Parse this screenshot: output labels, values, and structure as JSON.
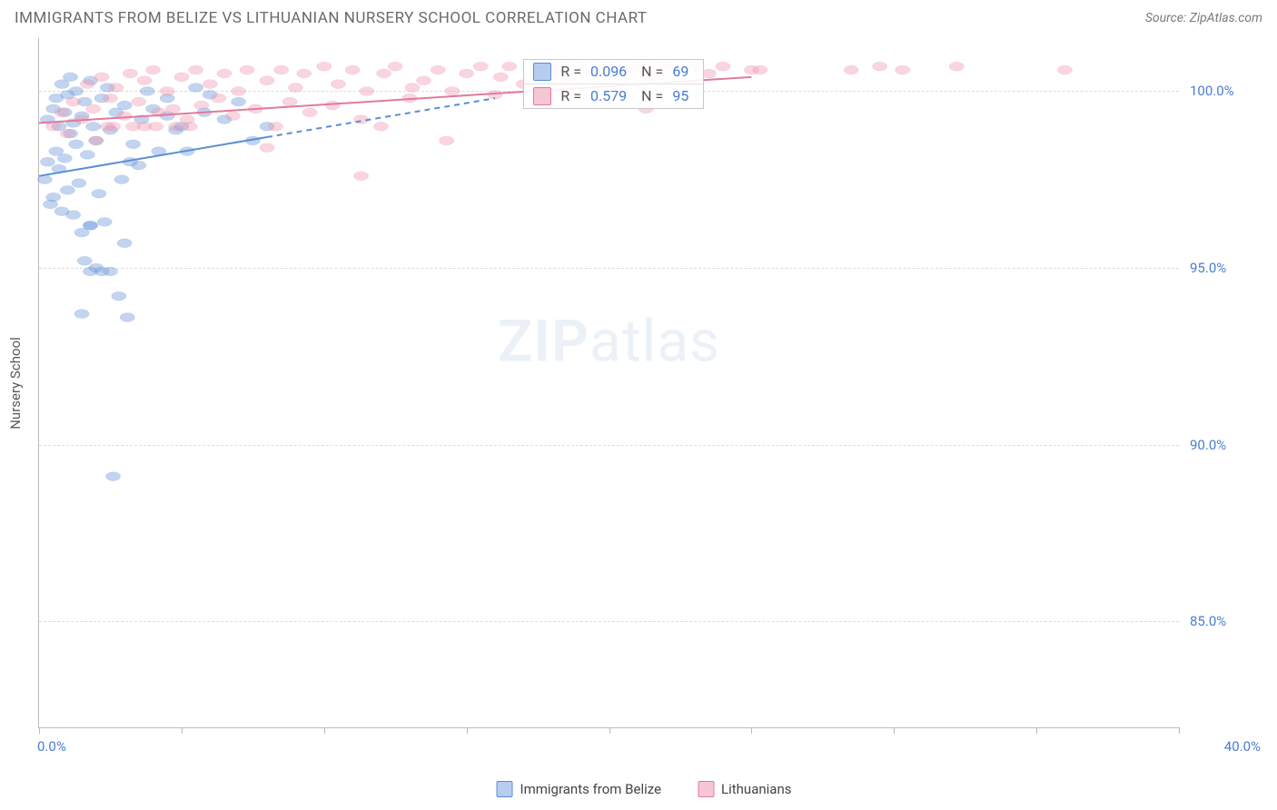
{
  "header": {
    "title": "IMMIGRANTS FROM BELIZE VS LITHUANIAN NURSERY SCHOOL CORRELATION CHART",
    "source": "Source: ZipAtlas.com"
  },
  "watermark": {
    "bold": "ZIP",
    "light": "atlas"
  },
  "chart": {
    "type": "scatter",
    "ylabel": "Nursery School",
    "xlim": [
      0,
      40
    ],
    "ylim": [
      82,
      101.5
    ],
    "x_ticks": [
      0,
      5,
      10,
      15,
      20,
      25,
      30,
      35,
      40
    ],
    "x_min_label": "0.0%",
    "x_max_label": "40.0%",
    "y_ticks": [
      {
        "v": 100,
        "label": "100.0%"
      },
      {
        "v": 95,
        "label": "95.0%"
      },
      {
        "v": 90,
        "label": "90.0%"
      },
      {
        "v": 85,
        "label": "85.0%"
      }
    ],
    "background_color": "#ffffff",
    "grid_color": "#dcdcdc",
    "marker_radius": 7,
    "marker_stroke_width": 1,
    "trend_line_width": 2,
    "dash_pattern": "6,5",
    "series": [
      {
        "key": "belize",
        "name": "Immigrants from Belize",
        "color_fill": "rgba(120,160,220,0.45)",
        "color_stroke": "#5a8fd4",
        "swatch_fill": "#b7cdf0",
        "swatch_border": "#5a8fd4",
        "R": "0.096",
        "N": "69",
        "trend_solid": {
          "x1": 0,
          "y1": 97.6,
          "x2": 8,
          "y2": 98.7
        },
        "trend_dash": {
          "x1": 8,
          "y1": 98.7,
          "x2": 16,
          "y2": 99.8
        },
        "points": [
          [
            0.2,
            97.5
          ],
          [
            0.3,
            98.0
          ],
          [
            0.3,
            99.2
          ],
          [
            0.4,
            96.8
          ],
          [
            0.5,
            99.5
          ],
          [
            0.5,
            97.0
          ],
          [
            0.6,
            99.8
          ],
          [
            0.6,
            98.3
          ],
          [
            0.7,
            99.0
          ],
          [
            0.7,
            97.8
          ],
          [
            0.8,
            100.2
          ],
          [
            0.8,
            96.6
          ],
          [
            0.9,
            99.4
          ],
          [
            0.9,
            98.1
          ],
          [
            1.0,
            99.9
          ],
          [
            1.0,
            97.2
          ],
          [
            1.1,
            98.8
          ],
          [
            1.1,
            100.4
          ],
          [
            1.2,
            99.1
          ],
          [
            1.2,
            96.5
          ],
          [
            1.3,
            98.5
          ],
          [
            1.3,
            100.0
          ],
          [
            1.4,
            97.4
          ],
          [
            1.5,
            99.3
          ],
          [
            1.5,
            96.0
          ],
          [
            1.6,
            95.2
          ],
          [
            1.6,
            99.7
          ],
          [
            1.7,
            98.2
          ],
          [
            1.8,
            100.3
          ],
          [
            1.8,
            96.2
          ],
          [
            1.9,
            99.0
          ],
          [
            2.0,
            95.0
          ],
          [
            2.0,
            98.6
          ],
          [
            2.1,
            97.1
          ],
          [
            2.2,
            99.8
          ],
          [
            2.3,
            96.3
          ],
          [
            2.4,
            100.1
          ],
          [
            2.5,
            94.9
          ],
          [
            2.5,
            98.9
          ],
          [
            2.7,
            99.4
          ],
          [
            2.8,
            94.2
          ],
          [
            2.9,
            97.5
          ],
          [
            3.0,
            95.7
          ],
          [
            3.0,
            99.6
          ],
          [
            3.1,
            93.6
          ],
          [
            3.2,
            98.0
          ],
          [
            3.3,
            98.5
          ],
          [
            3.5,
            97.9
          ],
          [
            3.6,
            99.2
          ],
          [
            3.8,
            100.0
          ],
          [
            4.0,
            99.5
          ],
          [
            4.2,
            98.3
          ],
          [
            4.5,
            99.8
          ],
          [
            4.5,
            99.3
          ],
          [
            4.8,
            98.9
          ],
          [
            5.0,
            99.0
          ],
          [
            5.2,
            98.3
          ],
          [
            5.5,
            100.1
          ],
          [
            5.8,
            99.4
          ],
          [
            6.0,
            99.9
          ],
          [
            6.5,
            99.2
          ],
          [
            7.0,
            99.7
          ],
          [
            7.5,
            98.6
          ],
          [
            8.0,
            99.0
          ],
          [
            2.6,
            89.1
          ],
          [
            1.8,
            94.9
          ],
          [
            2.2,
            94.9
          ],
          [
            1.5,
            93.7
          ],
          [
            1.8,
            96.2
          ]
        ]
      },
      {
        "key": "lithuanians",
        "name": "Lithuanians",
        "color_fill": "rgba(240,150,175,0.40)",
        "color_stroke": "#e27a9a",
        "swatch_fill": "#f5c6d4",
        "swatch_border": "#e27a9a",
        "R": "0.579",
        "N": "95",
        "trend_solid": {
          "x1": 0,
          "y1": 99.1,
          "x2": 25,
          "y2": 100.4
        },
        "trend_dash": null,
        "points": [
          [
            0.5,
            99.0
          ],
          [
            0.8,
            99.4
          ],
          [
            1.0,
            98.8
          ],
          [
            1.2,
            99.7
          ],
          [
            1.5,
            99.2
          ],
          [
            1.7,
            100.2
          ],
          [
            1.9,
            99.5
          ],
          [
            2.0,
            98.6
          ],
          [
            2.2,
            100.4
          ],
          [
            2.4,
            99.0
          ],
          [
            2.5,
            99.8
          ],
          [
            2.6,
            99.0
          ],
          [
            2.7,
            100.1
          ],
          [
            3.0,
            99.3
          ],
          [
            3.2,
            100.5
          ],
          [
            3.3,
            99.0
          ],
          [
            3.5,
            99.7
          ],
          [
            3.7,
            100.3
          ],
          [
            3.7,
            99.0
          ],
          [
            4.0,
            100.6
          ],
          [
            4.1,
            99.0
          ],
          [
            4.2,
            99.4
          ],
          [
            4.5,
            100.0
          ],
          [
            4.7,
            99.5
          ],
          [
            4.8,
            99.0
          ],
          [
            5.0,
            100.4
          ],
          [
            5.2,
            99.2
          ],
          [
            5.3,
            99.0
          ],
          [
            5.5,
            100.6
          ],
          [
            5.7,
            99.6
          ],
          [
            6.0,
            100.2
          ],
          [
            6.3,
            99.8
          ],
          [
            6.5,
            100.5
          ],
          [
            6.8,
            99.3
          ],
          [
            7.0,
            100.0
          ],
          [
            7.3,
            100.6
          ],
          [
            7.6,
            99.5
          ],
          [
            8.0,
            100.3
          ],
          [
            8.3,
            99.0
          ],
          [
            8.5,
            100.6
          ],
          [
            8.8,
            99.7
          ],
          [
            9.0,
            100.1
          ],
          [
            9.3,
            100.5
          ],
          [
            9.5,
            99.4
          ],
          [
            10.0,
            100.7
          ],
          [
            10.3,
            99.6
          ],
          [
            10.5,
            100.2
          ],
          [
            11.0,
            100.6
          ],
          [
            11.3,
            99.2
          ],
          [
            11.5,
            100.0
          ],
          [
            12.0,
            99.0
          ],
          [
            12.1,
            100.5
          ],
          [
            12.5,
            100.7
          ],
          [
            13.0,
            99.8
          ],
          [
            13.1,
            100.1
          ],
          [
            13.5,
            100.3
          ],
          [
            14.0,
            100.6
          ],
          [
            14.3,
            98.6
          ],
          [
            14.5,
            100.0
          ],
          [
            15.0,
            100.5
          ],
          [
            15.5,
            100.7
          ],
          [
            16.0,
            99.9
          ],
          [
            16.2,
            100.4
          ],
          [
            16.5,
            100.7
          ],
          [
            17.0,
            100.2
          ],
          [
            17.5,
            100.6
          ],
          [
            17.6,
            100.6
          ],
          [
            18.0,
            100.5
          ],
          [
            18.2,
            100.7
          ],
          [
            18.5,
            100.3
          ],
          [
            19.0,
            100.7
          ],
          [
            19.5,
            100.5
          ],
          [
            20.0,
            100.7
          ],
          [
            20.1,
            100.5
          ],
          [
            20.5,
            100.6
          ],
          [
            20.6,
            100.6
          ],
          [
            21.0,
            100.7
          ],
          [
            21.3,
            99.5
          ],
          [
            21.3,
            100.5
          ],
          [
            21.4,
            100.5
          ],
          [
            21.5,
            100.4
          ],
          [
            22.0,
            100.7
          ],
          [
            22.5,
            100.6
          ],
          [
            23.0,
            100.7
          ],
          [
            23.5,
            100.5
          ],
          [
            24.0,
            100.7
          ],
          [
            25.0,
            100.6
          ],
          [
            25.3,
            100.6
          ],
          [
            28.5,
            100.6
          ],
          [
            29.5,
            100.7
          ],
          [
            30.3,
            100.6
          ],
          [
            32.2,
            100.7
          ],
          [
            36.0,
            100.6
          ],
          [
            11.3,
            97.6
          ],
          [
            8.0,
            98.4
          ]
        ]
      }
    ]
  },
  "stat_box": {
    "left_pct": 42.5,
    "top_pct": 3
  }
}
